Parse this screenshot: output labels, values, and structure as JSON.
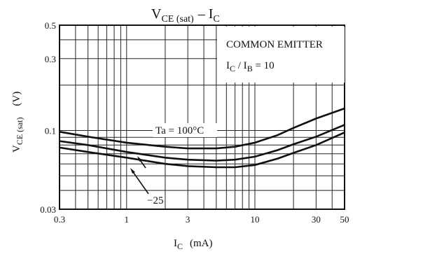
{
  "chart_data": {
    "type": "line",
    "title": "V",
    "title_sub": "CE (sat)",
    "title_tail": "– I",
    "title_tail_sub": "C",
    "xlabel": "I",
    "xlabel_sub": "C",
    "xunit": "(mA)",
    "ylabel": "V",
    "ylabel_sub": "CE (sat)",
    "yunit": "(V)",
    "x_scale": "log",
    "y_scale": "log",
    "xlim": [
      0.3,
      50
    ],
    "ylim": [
      0.03,
      0.5
    ],
    "x_ticks": [
      {
        "v": 0.3,
        "label": "0.3"
      },
      {
        "v": 1,
        "label": "1"
      },
      {
        "v": 3,
        "label": "3"
      },
      {
        "v": 10,
        "label": "10"
      },
      {
        "v": 30,
        "label": "30"
      },
      {
        "v": 50,
        "label": "50"
      }
    ],
    "y_ticks": [
      {
        "v": 0.5,
        "label": "0.5"
      },
      {
        "v": 0.3,
        "label": "0.3"
      },
      {
        "v": 0.1,
        "label": "0.1"
      },
      {
        "v": 0.03,
        "label": "0.03"
      }
    ],
    "x_grid": [
      0.3,
      0.4,
      0.5,
      0.6,
      0.7,
      0.8,
      0.9,
      1,
      2,
      3,
      4,
      5,
      6,
      7,
      8,
      9,
      10,
      20,
      30,
      40,
      50
    ],
    "y_grid": [
      0.03,
      0.04,
      0.05,
      0.06,
      0.07,
      0.08,
      0.09,
      0.1,
      0.2,
      0.3,
      0.4,
      0.5
    ],
    "grid": true,
    "annotation_box": {
      "lines": [
        "COMMON EMITTER",
        "I",
        "C",
        "/ I",
        "B",
        " = 10"
      ],
      "line1": "COMMON EMITTER",
      "line2_main": "I",
      "line2_sub": "C",
      "line2_mid": " / I",
      "line2_sub2": "B",
      "line2_tail": " = 10"
    },
    "series": [
      {
        "name": "Ta = 100°C",
        "x": [
          0.3,
          0.5,
          1,
          2,
          3,
          5,
          7,
          10,
          15,
          20,
          30,
          50
        ],
        "y": [
          0.098,
          0.091,
          0.083,
          0.078,
          0.076,
          0.076,
          0.078,
          0.083,
          0.093,
          0.104,
          0.12,
          0.14
        ]
      },
      {
        "name": "25",
        "x": [
          0.3,
          0.5,
          1,
          2,
          3,
          5,
          7,
          10,
          15,
          20,
          30,
          50
        ],
        "y": [
          0.085,
          0.08,
          0.072,
          0.066,
          0.064,
          0.063,
          0.064,
          0.067,
          0.074,
          0.081,
          0.091,
          0.109
        ]
      },
      {
        "name": "−25",
        "x": [
          0.3,
          0.5,
          1,
          2,
          3,
          5,
          7,
          10,
          15,
          20,
          30,
          50
        ],
        "y": [
          0.077,
          0.072,
          0.066,
          0.06,
          0.058,
          0.057,
          0.057,
          0.059,
          0.065,
          0.071,
          0.08,
          0.097
        ]
      }
    ],
    "series_labels": [
      {
        "text": "Ta = 100°C"
      },
      {
        "text": "25"
      },
      {
        "text": "−25"
      }
    ]
  }
}
